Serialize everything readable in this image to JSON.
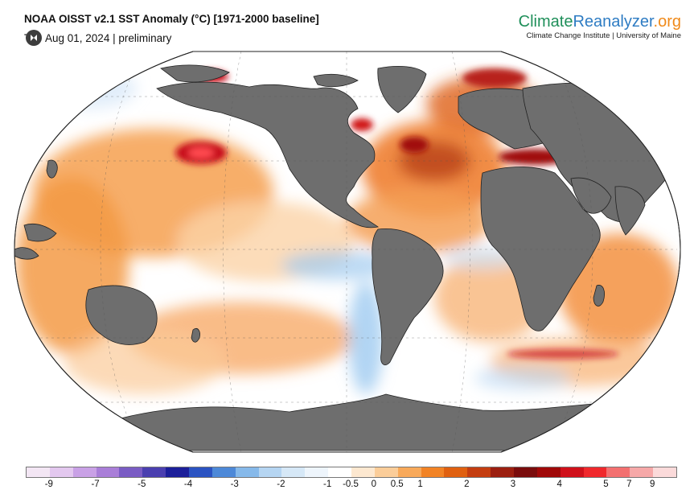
{
  "header": {
    "title": "NOAA OISST v2.1 SST Anomaly (°C) [1971-2000 baseline]",
    "subtitle_prefix": "T",
    "subtitle_date": "Aug 01, 2024 | preliminary",
    "play_icon": "play-pause-icon"
  },
  "brand": {
    "name_part1": "Climate",
    "name_part2": "Reanalyzer",
    "name_part3": ".org",
    "tagline": "Climate Change Institute | University of Maine",
    "colors": {
      "part1": "#1f8f5a",
      "part2": "#2e7cc3",
      "part3": "#f08a1a"
    }
  },
  "map": {
    "projection": "Robinson",
    "land_color": "#6e6e6e",
    "ocean_color": "#ffffff"
  },
  "legend": {
    "labels": [
      "-9",
      "-7",
      "-5",
      "-4",
      "-3",
      "-2",
      "-1",
      "-0.5",
      "0",
      "0.5",
      "1",
      "2",
      "3",
      "4",
      "5",
      "7",
      "9"
    ],
    "colors": [
      "#f3e6f4",
      "#e3c8ef",
      "#c9a1e6",
      "#a97ed8",
      "#7a5cc4",
      "#4a3fb0",
      "#1c1f9a",
      "#2b53c2",
      "#4d89d8",
      "#86b9ea",
      "#b5d5f2",
      "#d6e8f7",
      "#eef5fc",
      "#ffffff",
      "#fde8d0",
      "#fbcd99",
      "#f8a95a",
      "#f28325",
      "#e06010",
      "#c43d10",
      "#9c1f10",
      "#7a0c0c",
      "#a00808",
      "#d0101a",
      "#f0282c",
      "#f37070",
      "#f6a8a8",
      "#fbdada"
    ]
  }
}
